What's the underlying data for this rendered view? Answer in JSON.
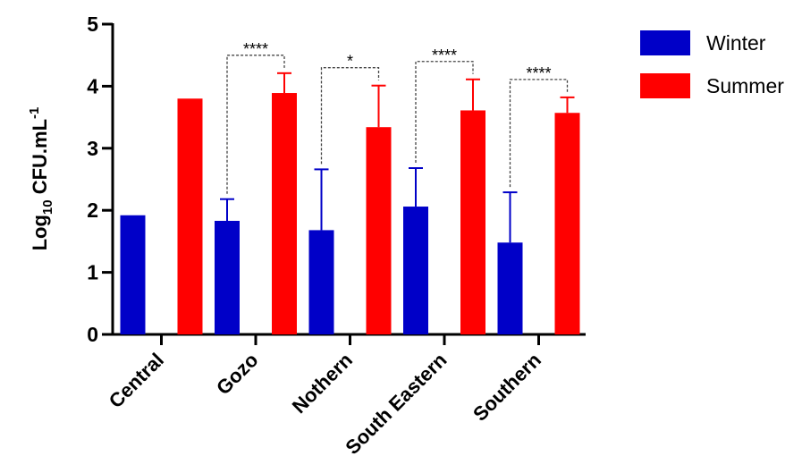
{
  "chart_data": {
    "type": "bar",
    "categories": [
      "Central",
      "Gozo",
      "Nothern",
      "South Eastern",
      "Southern"
    ],
    "series": [
      {
        "name": "Winter",
        "color": "#0000c8",
        "values": [
          1.92,
          1.83,
          1.68,
          2.06,
          1.48
        ],
        "errors": [
          0,
          0.35,
          0.98,
          0.62,
          0.81
        ]
      },
      {
        "name": "Summer",
        "color": "#ff0000",
        "values": [
          3.8,
          3.89,
          3.34,
          3.61,
          3.57
        ],
        "errors": [
          0,
          0.32,
          0.67,
          0.5,
          0.25
        ]
      }
    ],
    "ylabel": {
      "base": "Log",
      "sub": "10",
      "unit": " CFU.mL",
      "sup": "-1"
    },
    "ylim": [
      0,
      5
    ],
    "yticks": [
      "0",
      "1",
      "2",
      "3",
      "4",
      "5"
    ],
    "significance": [
      {
        "category": "Gozo",
        "label": "****"
      },
      {
        "category": "Nothern",
        "label": "*"
      },
      {
        "category": "South Eastern",
        "label": "****"
      },
      {
        "category": "Southern",
        "label": "****"
      }
    ],
    "legend_position": "top-right",
    "grid": false
  }
}
